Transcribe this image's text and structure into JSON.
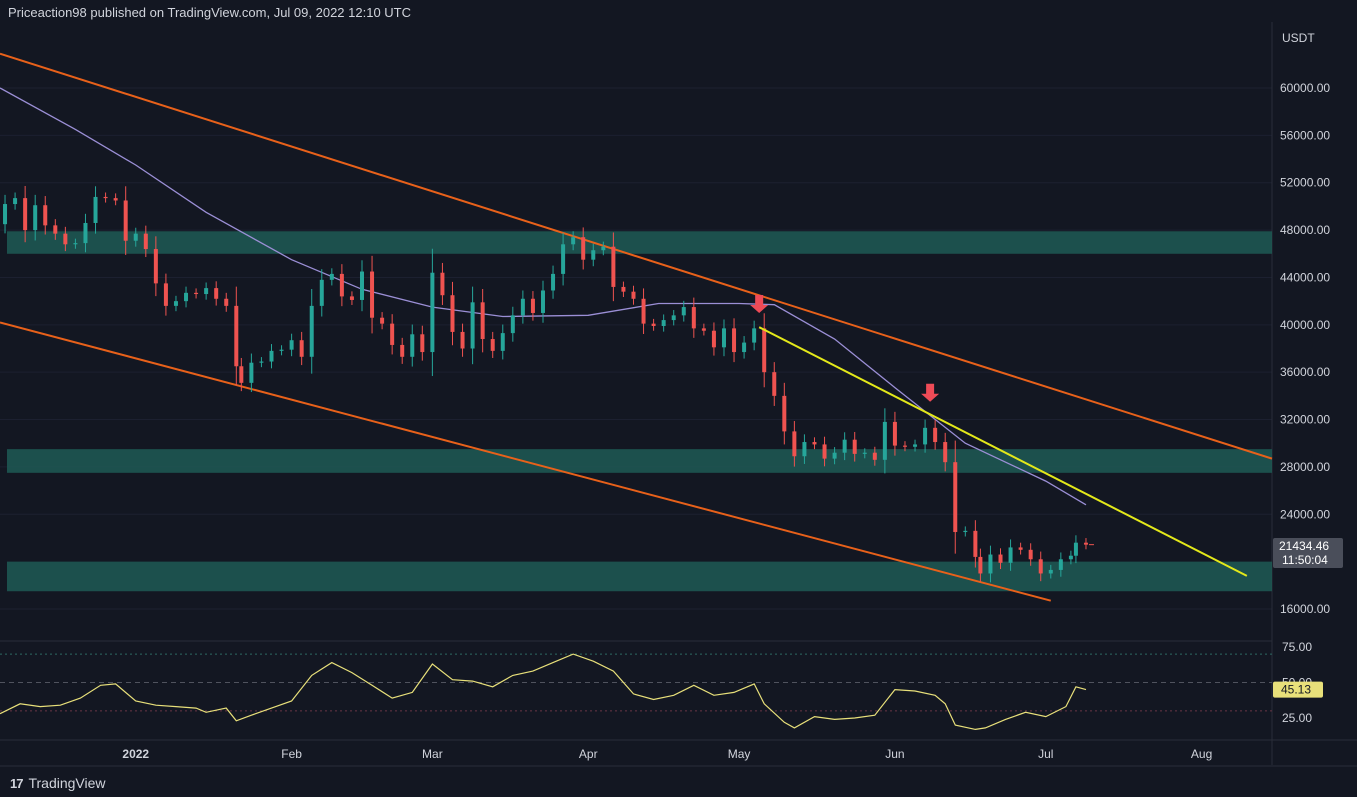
{
  "header": {
    "publisher_line": "Priceaction98 published on TradingView.com, Jul 09, 2022 12:10 UTC"
  },
  "footer": {
    "logo_text": "TradingView",
    "logo_icon": "tradingview-logo-icon"
  },
  "colors": {
    "background": "#131722",
    "candle_up": "#26a69a",
    "candle_down": "#ef5350",
    "support_zone": "#1e5a55",
    "channel_line": "#e8611a",
    "trend_line": "#e3e81a",
    "moving_average": "#9b8fd6",
    "rsi_line": "#e8e07a",
    "arrow": "#ef4b57",
    "text": "#d1d4dc"
  },
  "chart_data": [
    {
      "type": "candlestick",
      "title": "",
      "currency_label": "USDT",
      "x_tick_labels": [
        "2022",
        "Feb",
        "Mar",
        "Apr",
        "May",
        "Jun",
        "Jul",
        "Aug"
      ],
      "y_tick_labels": [
        "60000.00",
        "56000.00",
        "52000.00",
        "48000.00",
        "44000.00",
        "40000.00",
        "36000.00",
        "32000.00",
        "28000.00",
        "24000.00",
        "16000.00"
      ],
      "ylim": [
        14000,
        63000
      ],
      "xlim": [
        "2021-12-05",
        "2022-08-15"
      ],
      "last_price": "21434.46",
      "countdown": "11:50:04",
      "price_path": [
        [
          "2021-12-05",
          48500
        ],
        [
          "2021-12-06",
          50200
        ],
        [
          "2021-12-08",
          50700
        ],
        [
          "2021-12-10",
          48000
        ],
        [
          "2021-12-12",
          50100
        ],
        [
          "2021-12-14",
          48400
        ],
        [
          "2021-12-16",
          47700
        ],
        [
          "2021-12-18",
          46800
        ],
        [
          "2021-12-20",
          46900
        ],
        [
          "2021-12-22",
          48600
        ],
        [
          "2021-12-24",
          50800
        ],
        [
          "2021-12-26",
          50700
        ],
        [
          "2021-12-28",
          50500
        ],
        [
          "2021-12-30",
          47100
        ],
        [
          "2022-01-01",
          47700
        ],
        [
          "2022-01-03",
          46400
        ],
        [
          "2022-01-05",
          43500
        ],
        [
          "2022-01-07",
          41600
        ],
        [
          "2022-01-09",
          42000
        ],
        [
          "2022-01-11",
          42700
        ],
        [
          "2022-01-13",
          42600
        ],
        [
          "2022-01-15",
          43100
        ],
        [
          "2022-01-17",
          42200
        ],
        [
          "2022-01-19",
          41600
        ],
        [
          "2022-01-21",
          36500
        ],
        [
          "2022-01-22",
          35100
        ],
        [
          "2022-01-24",
          36800
        ],
        [
          "2022-01-26",
          36900
        ],
        [
          "2022-01-28",
          37800
        ],
        [
          "2022-01-30",
          37900
        ],
        [
          "2022-02-01",
          38700
        ],
        [
          "2022-02-03",
          37300
        ],
        [
          "2022-02-05",
          41600
        ],
        [
          "2022-02-07",
          43800
        ],
        [
          "2022-02-09",
          44300
        ],
        [
          "2022-02-11",
          42400
        ],
        [
          "2022-02-13",
          42100
        ],
        [
          "2022-02-15",
          44500
        ],
        [
          "2022-02-17",
          40600
        ],
        [
          "2022-02-19",
          40100
        ],
        [
          "2022-02-21",
          38300
        ],
        [
          "2022-02-23",
          37300
        ],
        [
          "2022-02-25",
          39200
        ],
        [
          "2022-02-27",
          37700
        ],
        [
          "2022-03-01",
          44400
        ],
        [
          "2022-03-03",
          42500
        ],
        [
          "2022-03-05",
          39400
        ],
        [
          "2022-03-07",
          38000
        ],
        [
          "2022-03-09",
          41900
        ],
        [
          "2022-03-11",
          38800
        ],
        [
          "2022-03-13",
          37800
        ],
        [
          "2022-03-15",
          39300
        ],
        [
          "2022-03-17",
          40800
        ],
        [
          "2022-03-19",
          42200
        ],
        [
          "2022-03-21",
          41000
        ],
        [
          "2022-03-23",
          42900
        ],
        [
          "2022-03-25",
          44300
        ],
        [
          "2022-03-27",
          46800
        ],
        [
          "2022-03-29",
          47400
        ],
        [
          "2022-03-31",
          45500
        ],
        [
          "2022-04-02",
          46300
        ],
        [
          "2022-04-04",
          46600
        ],
        [
          "2022-04-06",
          43200
        ],
        [
          "2022-04-08",
          42800
        ],
        [
          "2022-04-10",
          42200
        ],
        [
          "2022-04-12",
          40100
        ],
        [
          "2022-04-14",
          39900
        ],
        [
          "2022-04-16",
          40400
        ],
        [
          "2022-04-18",
          40800
        ],
        [
          "2022-04-20",
          41500
        ],
        [
          "2022-04-22",
          39700
        ],
        [
          "2022-04-24",
          39500
        ],
        [
          "2022-04-26",
          38100
        ],
        [
          "2022-04-28",
          39700
        ],
        [
          "2022-04-30",
          37700
        ],
        [
          "2022-05-02",
          38500
        ],
        [
          "2022-05-04",
          39700
        ],
        [
          "2022-05-06",
          36000
        ],
        [
          "2022-05-08",
          34000
        ],
        [
          "2022-05-10",
          31000
        ],
        [
          "2022-05-12",
          28900
        ],
        [
          "2022-05-14",
          30100
        ],
        [
          "2022-05-16",
          29900
        ],
        [
          "2022-05-18",
          28700
        ],
        [
          "2022-05-20",
          29200
        ],
        [
          "2022-05-22",
          30300
        ],
        [
          "2022-05-24",
          29100
        ],
        [
          "2022-05-26",
          29200
        ],
        [
          "2022-05-28",
          28600
        ],
        [
          "2022-05-30",
          31800
        ],
        [
          "2022-06-01",
          29800
        ],
        [
          "2022-06-03",
          29700
        ],
        [
          "2022-06-05",
          29900
        ],
        [
          "2022-06-07",
          31300
        ],
        [
          "2022-06-09",
          30100
        ],
        [
          "2022-06-11",
          28400
        ],
        [
          "2022-06-13",
          22500
        ],
        [
          "2022-06-15",
          22600
        ],
        [
          "2022-06-17",
          20400
        ],
        [
          "2022-06-18",
          19000
        ],
        [
          "2022-06-20",
          20600
        ],
        [
          "2022-06-22",
          19900
        ],
        [
          "2022-06-24",
          21200
        ],
        [
          "2022-06-26",
          21000
        ],
        [
          "2022-06-28",
          20200
        ],
        [
          "2022-06-30",
          19000
        ],
        [
          "2022-07-02",
          19300
        ],
        [
          "2022-07-04",
          20200
        ],
        [
          "2022-07-06",
          20500
        ],
        [
          "2022-07-07",
          21600
        ],
        [
          "2022-07-09",
          21434
        ]
      ],
      "moving_average": [
        [
          "2021-12-05",
          60000
        ],
        [
          "2021-12-20",
          56500
        ],
        [
          "2022-01-01",
          53500
        ],
        [
          "2022-01-15",
          49500
        ],
        [
          "2022-02-01",
          45500
        ],
        [
          "2022-02-15",
          43000
        ],
        [
          "2022-03-01",
          41500
        ],
        [
          "2022-03-15",
          40700
        ],
        [
          "2022-04-01",
          40800
        ],
        [
          "2022-04-15",
          41800
        ],
        [
          "2022-05-01",
          41800
        ],
        [
          "2022-05-08",
          41700
        ],
        [
          "2022-05-20",
          38800
        ],
        [
          "2022-06-01",
          34700
        ],
        [
          "2022-06-15",
          30000
        ],
        [
          "2022-07-01",
          26800
        ],
        [
          "2022-07-09",
          24800
        ]
      ],
      "support_zones": [
        {
          "low": 46000,
          "high": 47900
        },
        {
          "low": 27500,
          "high": 29500
        },
        {
          "low": 17500,
          "high": 20000
        }
      ],
      "channel_upper": [
        [
          "2021-12-05",
          62900
        ],
        [
          "2022-08-15",
          28700
        ]
      ],
      "channel_lower": [
        [
          "2021-12-05",
          40200
        ],
        [
          "2022-07-02",
          16700
        ]
      ],
      "trend_line": [
        [
          "2022-05-05",
          39800
        ],
        [
          "2022-08-10",
          18800
        ]
      ],
      "arrows": [
        {
          "date": "2022-05-05",
          "price": 41000
        },
        {
          "date": "2022-06-08",
          "price": 33500
        }
      ]
    },
    {
      "type": "line",
      "title": "",
      "indicator": "RSI",
      "y_tick_labels": [
        "75.00",
        "50.00",
        "25.00"
      ],
      "ylim": [
        10,
        82
      ],
      "bands": [
        70,
        50,
        30
      ],
      "last_value": "45.13",
      "values": [
        [
          "2021-12-05",
          28
        ],
        [
          "2021-12-09",
          35
        ],
        [
          "2021-12-13",
          33
        ],
        [
          "2021-12-17",
          34
        ],
        [
          "2021-12-21",
          39
        ],
        [
          "2021-12-25",
          48
        ],
        [
          "2021-12-28",
          49
        ],
        [
          "2022-01-01",
          37
        ],
        [
          "2022-01-05",
          34
        ],
        [
          "2022-01-09",
          33
        ],
        [
          "2022-01-13",
          32
        ],
        [
          "2022-01-15",
          29
        ],
        [
          "2022-01-19",
          32
        ],
        [
          "2022-01-21",
          23
        ],
        [
          "2022-01-24",
          27
        ],
        [
          "2022-01-28",
          32
        ],
        [
          "2022-02-01",
          37
        ],
        [
          "2022-02-05",
          55
        ],
        [
          "2022-02-09",
          64
        ],
        [
          "2022-02-13",
          57
        ],
        [
          "2022-02-17",
          48
        ],
        [
          "2022-02-21",
          39
        ],
        [
          "2022-02-25",
          43
        ],
        [
          "2022-03-01",
          63
        ],
        [
          "2022-03-05",
          52
        ],
        [
          "2022-03-09",
          51
        ],
        [
          "2022-03-13",
          47
        ],
        [
          "2022-03-17",
          55
        ],
        [
          "2022-03-21",
          58
        ],
        [
          "2022-03-25",
          64
        ],
        [
          "2022-03-29",
          70
        ],
        [
          "2022-04-02",
          65
        ],
        [
          "2022-04-06",
          58
        ],
        [
          "2022-04-10",
          42
        ],
        [
          "2022-04-14",
          38
        ],
        [
          "2022-04-18",
          41
        ],
        [
          "2022-04-22",
          48
        ],
        [
          "2022-04-26",
          41
        ],
        [
          "2022-04-30",
          43
        ],
        [
          "2022-05-04",
          49
        ],
        [
          "2022-05-06",
          35
        ],
        [
          "2022-05-10",
          22
        ],
        [
          "2022-05-12",
          18
        ],
        [
          "2022-05-16",
          26
        ],
        [
          "2022-05-20",
          24
        ],
        [
          "2022-05-24",
          25
        ],
        [
          "2022-05-28",
          27
        ],
        [
          "2022-06-01",
          45
        ],
        [
          "2022-06-05",
          44
        ],
        [
          "2022-06-09",
          41
        ],
        [
          "2022-06-11",
          35
        ],
        [
          "2022-06-13",
          20
        ],
        [
          "2022-06-17",
          17
        ],
        [
          "2022-06-19",
          18
        ],
        [
          "2022-06-23",
          24
        ],
        [
          "2022-06-27",
          29
        ],
        [
          "2022-07-01",
          26
        ],
        [
          "2022-07-05",
          33
        ],
        [
          "2022-07-07",
          47
        ],
        [
          "2022-07-09",
          45
        ]
      ]
    }
  ]
}
